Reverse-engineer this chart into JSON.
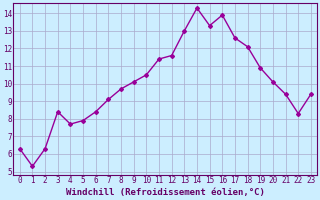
{
  "x": [
    0,
    1,
    2,
    3,
    4,
    5,
    6,
    7,
    8,
    9,
    10,
    11,
    12,
    13,
    14,
    15,
    16,
    17,
    18,
    19,
    20,
    21,
    22,
    23
  ],
  "y": [
    6.3,
    5.3,
    6.3,
    8.4,
    7.7,
    7.9,
    8.4,
    9.1,
    9.7,
    10.1,
    10.5,
    11.4,
    11.6,
    13.0,
    14.3,
    13.3,
    13.9,
    12.6,
    12.1,
    10.9,
    10.1,
    9.4,
    8.3,
    9.4
  ],
  "line_color": "#990099",
  "marker": "D",
  "marker_size": 2.0,
  "line_width": 1.0,
  "bg_color": "#cceeff",
  "grid_color": "#aaaacc",
  "xlabel": "Windchill (Refroidissement éolien,°C)",
  "xlabel_color": "#660066",
  "xlabel_fontsize": 6.5,
  "tick_color": "#660066",
  "tick_fontsize": 5.5,
  "ylim": [
    4.8,
    14.6
  ],
  "yticks": [
    5,
    6,
    7,
    8,
    9,
    10,
    11,
    12,
    13,
    14
  ],
  "xlim": [
    -0.5,
    23.5
  ],
  "xticks": [
    0,
    1,
    2,
    3,
    4,
    5,
    6,
    7,
    8,
    9,
    10,
    11,
    12,
    13,
    14,
    15,
    16,
    17,
    18,
    19,
    20,
    21,
    22,
    23
  ],
  "spine_color": "#660066"
}
